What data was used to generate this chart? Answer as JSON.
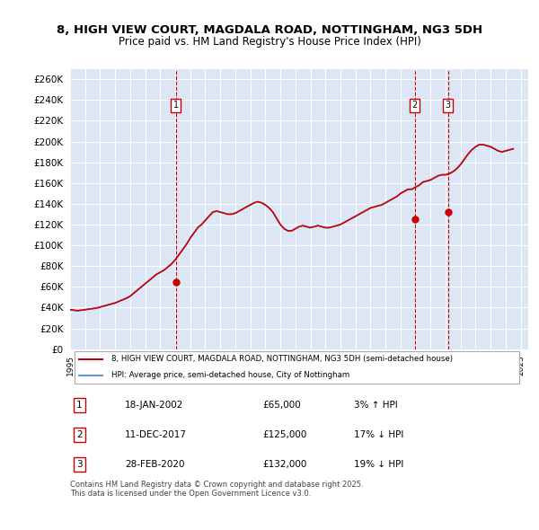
{
  "title_line1": "8, HIGH VIEW COURT, MAGDALA ROAD, NOTTINGHAM, NG3 5DH",
  "title_line2": "Price paid vs. HM Land Registry's House Price Index (HPI)",
  "ylabel": "",
  "background_color": "#dce6f5",
  "plot_bg_color": "#dce6f5",
  "ylim": [
    0,
    270000
  ],
  "yticks": [
    0,
    20000,
    40000,
    60000,
    80000,
    100000,
    120000,
    140000,
    160000,
    180000,
    200000,
    220000,
    240000,
    260000
  ],
  "sale_dates": [
    2002.05,
    2017.94,
    2020.16
  ],
  "sale_prices": [
    65000,
    125000,
    132000
  ],
  "sale_labels": [
    "1",
    "2",
    "3"
  ],
  "vline_color": "#cc0000",
  "red_line_color": "#cc0000",
  "blue_line_color": "#6699cc",
  "legend_label_red": "8, HIGH VIEW COURT, MAGDALA ROAD, NOTTINGHAM, NG3 5DH (semi-detached house)",
  "legend_label_blue": "HPI: Average price, semi-detached house, City of Nottingham",
  "table_rows": [
    {
      "label": "1",
      "date": "18-JAN-2002",
      "price": "£65,000",
      "change": "3% ↑ HPI"
    },
    {
      "label": "2",
      "date": "11-DEC-2017",
      "price": "£125,000",
      "change": "17% ↓ HPI"
    },
    {
      "label": "3",
      "date": "28-FEB-2020",
      "price": "£132,000",
      "change": "19% ↓ HPI"
    }
  ],
  "footer": "Contains HM Land Registry data © Crown copyright and database right 2025.\nThis data is licensed under the Open Government Licence v3.0.",
  "hpi_years": [
    1995.0,
    1995.25,
    1995.5,
    1995.75,
    1996.0,
    1996.25,
    1996.5,
    1996.75,
    1997.0,
    1997.25,
    1997.5,
    1997.75,
    1998.0,
    1998.25,
    1998.5,
    1998.75,
    1999.0,
    1999.25,
    1999.5,
    1999.75,
    2000.0,
    2000.25,
    2000.5,
    2000.75,
    2001.0,
    2001.25,
    2001.5,
    2001.75,
    2002.0,
    2002.25,
    2002.5,
    2002.75,
    2003.0,
    2003.25,
    2003.5,
    2003.75,
    2004.0,
    2004.25,
    2004.5,
    2004.75,
    2005.0,
    2005.25,
    2005.5,
    2005.75,
    2006.0,
    2006.25,
    2006.5,
    2006.75,
    2007.0,
    2007.25,
    2007.5,
    2007.75,
    2008.0,
    2008.25,
    2008.5,
    2008.75,
    2009.0,
    2009.25,
    2009.5,
    2009.75,
    2010.0,
    2010.25,
    2010.5,
    2010.75,
    2011.0,
    2011.25,
    2011.5,
    2011.75,
    2012.0,
    2012.25,
    2012.5,
    2012.75,
    2013.0,
    2013.25,
    2013.5,
    2013.75,
    2014.0,
    2014.25,
    2014.5,
    2014.75,
    2015.0,
    2015.25,
    2015.5,
    2015.75,
    2016.0,
    2016.25,
    2016.5,
    2016.75,
    2017.0,
    2017.25,
    2017.5,
    2017.75,
    2018.0,
    2018.25,
    2018.5,
    2018.75,
    2019.0,
    2019.25,
    2019.5,
    2019.75,
    2020.0,
    2020.25,
    2020.5,
    2020.75,
    2021.0,
    2021.25,
    2021.5,
    2021.75,
    2022.0,
    2022.25,
    2022.5,
    2022.75,
    2023.0,
    2023.25,
    2023.5,
    2023.75,
    2024.0,
    2024.25,
    2024.5
  ],
  "hpi_values": [
    38000,
    37500,
    37000,
    37500,
    38000,
    38500,
    39000,
    39500,
    40500,
    41500,
    42500,
    43500,
    44500,
    46000,
    47500,
    49000,
    51000,
    54000,
    57000,
    60000,
    63000,
    66000,
    69000,
    72000,
    74000,
    76000,
    79000,
    82000,
    86000,
    91000,
    96000,
    101000,
    107000,
    112000,
    117000,
    120000,
    124000,
    128000,
    132000,
    133000,
    132000,
    131000,
    130000,
    130000,
    131000,
    133000,
    135000,
    137000,
    139000,
    141000,
    142000,
    141000,
    139000,
    136000,
    132000,
    126000,
    120000,
    116000,
    114000,
    114000,
    116000,
    118000,
    119000,
    118000,
    117000,
    118000,
    119000,
    118000,
    117000,
    117000,
    118000,
    119000,
    120000,
    122000,
    124000,
    126000,
    128000,
    130000,
    132000,
    134000,
    136000,
    137000,
    138000,
    139000,
    141000,
    143000,
    145000,
    147000,
    150000,
    152000,
    154000,
    154000,
    156000,
    158000,
    161000,
    162000,
    163000,
    165000,
    167000,
    168000,
    168000,
    169000,
    171000,
    174000,
    178000,
    183000,
    188000,
    192000,
    195000,
    197000,
    197000,
    196000,
    195000,
    193000,
    191000,
    190000,
    191000,
    192000,
    193000
  ],
  "red_hpi_years": [
    1995.0,
    1995.25,
    1995.5,
    1995.75,
    1996.0,
    1996.25,
    1996.5,
    1996.75,
    1997.0,
    1997.25,
    1997.5,
    1997.75,
    1998.0,
    1998.25,
    1998.5,
    1998.75,
    1999.0,
    1999.25,
    1999.5,
    1999.75,
    2000.0,
    2000.25,
    2000.5,
    2000.75,
    2001.0,
    2001.25,
    2001.5,
    2001.75,
    2002.0,
    2002.25,
    2002.5,
    2002.75,
    2003.0,
    2003.25,
    2003.5,
    2003.75,
    2004.0,
    2004.25,
    2004.5,
    2004.75,
    2005.0,
    2005.25,
    2005.5,
    2005.75,
    2006.0,
    2006.25,
    2006.5,
    2006.75,
    2007.0,
    2007.25,
    2007.5,
    2007.75,
    2008.0,
    2008.25,
    2008.5,
    2008.75,
    2009.0,
    2009.25,
    2009.5,
    2009.75,
    2010.0,
    2010.25,
    2010.5,
    2010.75,
    2011.0,
    2011.25,
    2011.5,
    2011.75,
    2012.0,
    2012.25,
    2012.5,
    2012.75,
    2013.0,
    2013.25,
    2013.5,
    2013.75,
    2014.0,
    2014.25,
    2014.5,
    2014.75,
    2015.0,
    2015.25,
    2015.5,
    2015.75,
    2016.0,
    2016.25,
    2016.5,
    2016.75,
    2017.0,
    2017.25,
    2017.5,
    2017.75,
    2018.0,
    2018.25,
    2018.5,
    2018.75,
    2019.0,
    2019.25,
    2019.5,
    2019.75,
    2020.0,
    2020.25,
    2020.5,
    2020.75,
    2021.0,
    2021.25,
    2021.5,
    2021.75,
    2022.0,
    2022.25,
    2022.5,
    2022.75,
    2023.0,
    2023.25,
    2023.5,
    2023.75,
    2024.0,
    2024.25,
    2024.5
  ],
  "red_hpi_values": [
    38000,
    37500,
    37000,
    37500,
    38000,
    38500,
    39000,
    39500,
    40500,
    41500,
    42500,
    43500,
    44500,
    46000,
    47500,
    49000,
    51000,
    54000,
    57000,
    60000,
    63000,
    66000,
    69000,
    72000,
    74000,
    76000,
    79000,
    82000,
    86000,
    91000,
    96000,
    101000,
    107000,
    112000,
    117000,
    120000,
    124000,
    128000,
    132000,
    133000,
    132000,
    131000,
    130000,
    130000,
    131000,
    133000,
    135000,
    137000,
    139000,
    141000,
    142000,
    141000,
    139000,
    136000,
    132000,
    126000,
    120000,
    116000,
    114000,
    114000,
    116000,
    118000,
    119000,
    118000,
    117000,
    118000,
    119000,
    118000,
    117000,
    117000,
    118000,
    119000,
    120000,
    122000,
    124000,
    126000,
    128000,
    130000,
    132000,
    134000,
    136000,
    137000,
    138000,
    139000,
    141000,
    143000,
    145000,
    147000,
    150000,
    152000,
    154000,
    154000,
    156000,
    158000,
    161000,
    162000,
    163000,
    165000,
    167000,
    168000,
    168000,
    169000,
    171000,
    174000,
    178000,
    183000,
    188000,
    192000,
    195000,
    197000,
    197000,
    196000,
    195000,
    193000,
    191000,
    190000,
    191000,
    192000,
    193000
  ]
}
